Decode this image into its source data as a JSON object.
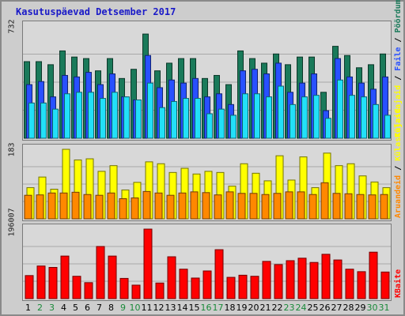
{
  "title": "Kasutuspäevad Detsember 2017",
  "chart_data": [
    {
      "type": "bar",
      "panel": "top",
      "max_label": "732",
      "ylim": [
        0,
        732
      ],
      "legend": [
        "Külastajaid",
        "Faile",
        "Pöördumisi"
      ],
      "categories": [
        "1",
        "2",
        "3",
        "4",
        "5",
        "6",
        "7",
        "8",
        "9",
        "10",
        "11",
        "12",
        "13",
        "14",
        "15",
        "16",
        "17",
        "18",
        "19",
        "20",
        "21",
        "22",
        "23",
        "24",
        "25",
        "26",
        "27",
        "28",
        "29",
        "30",
        "31"
      ],
      "series": [
        {
          "name": "Pöördumisi",
          "color": "#1a7a5a",
          "values": [
            500,
            500,
            480,
            570,
            530,
            520,
            440,
            520,
            390,
            450,
            680,
            440,
            490,
            520,
            520,
            390,
            410,
            350,
            570,
            520,
            490,
            550,
            480,
            530,
            530,
            300,
            600,
            540,
            460,
            480,
            550
          ]
        },
        {
          "name": "Faile",
          "color": "#2850ff",
          "values": [
            350,
            370,
            270,
            410,
            400,
            430,
            350,
            420,
            270,
            250,
            540,
            330,
            380,
            360,
            390,
            270,
            290,
            220,
            440,
            450,
            420,
            490,
            300,
            360,
            420,
            180,
            520,
            400,
            360,
            320,
            400
          ]
        },
        {
          "name": "Külastajaid",
          "color": "#22e0f8",
          "values": [
            230,
            230,
            190,
            290,
            300,
            300,
            260,
            300,
            270,
            250,
            360,
            200,
            240,
            260,
            260,
            160,
            190,
            150,
            290,
            290,
            270,
            340,
            220,
            270,
            280,
            130,
            380,
            280,
            270,
            220,
            150
          ]
        }
      ]
    },
    {
      "type": "bar",
      "panel": "middle",
      "max_label": "183",
      "ylim": [
        0,
        183
      ],
      "legend": [
        "Aruandeid",
        "Külastajaid"
      ],
      "categories": [
        "1",
        "2",
        "3",
        "4",
        "5",
        "6",
        "7",
        "8",
        "9",
        "10",
        "11",
        "12",
        "13",
        "14",
        "15",
        "16",
        "17",
        "18",
        "19",
        "20",
        "21",
        "22",
        "23",
        "24",
        "25",
        "26",
        "27",
        "28",
        "29",
        "30",
        "31"
      ],
      "series": [
        {
          "name": "Külastajaid",
          "color": "#ffff00",
          "values": [
            82,
            110,
            78,
            183,
            155,
            158,
            125,
            140,
            76,
            96,
            150,
            145,
            122,
            133,
            118,
            125,
            122,
            86,
            145,
            120,
            100,
            166,
            102,
            163,
            82,
            173,
            140,
            145,
            113,
            97,
            82
          ]
        },
        {
          "name": "Aruandeid",
          "color": "#ff8800",
          "values": [
            62,
            63,
            68,
            68,
            70,
            64,
            62,
            68,
            53,
            55,
            72,
            68,
            62,
            68,
            71,
            69,
            63,
            71,
            67,
            67,
            64,
            67,
            71,
            71,
            64,
            95,
            67,
            66,
            64,
            63,
            64
          ]
        }
      ]
    },
    {
      "type": "bar",
      "panel": "bottom",
      "max_label": "196007",
      "ylim": [
        0,
        196007
      ],
      "legend": [
        "KBaite"
      ],
      "categories": [
        "1",
        "2",
        "3",
        "4",
        "5",
        "6",
        "7",
        "8",
        "9",
        "10",
        "11",
        "12",
        "13",
        "14",
        "15",
        "16",
        "17",
        "18",
        "19",
        "20",
        "21",
        "22",
        "23",
        "24",
        "25",
        "26",
        "27",
        "28",
        "29",
        "30",
        "31"
      ],
      "series": [
        {
          "name": "KBaite",
          "color": "#ff0000",
          "values": [
            65000,
            92000,
            88000,
            120000,
            63000,
            45000,
            147000,
            120000,
            57000,
            38000,
            196000,
            44000,
            118000,
            83000,
            58000,
            78000,
            138000,
            60000,
            66000,
            63000,
            105000,
            96000,
            107000,
            114000,
            102000,
            125000,
            109000,
            83000,
            76000,
            131000,
            75000
          ]
        }
      ]
    }
  ],
  "xaxis": {
    "labels": [
      "1",
      "2",
      "3",
      "4",
      "5",
      "6",
      "7",
      "8",
      "9",
      "10",
      "11",
      "12",
      "13",
      "14",
      "15",
      "16",
      "17",
      "18",
      "19",
      "20",
      "21",
      "22",
      "23",
      "24",
      "25",
      "26",
      "27",
      "28",
      "29",
      "30",
      "31"
    ],
    "weekend_days": [
      "2",
      "3",
      "9",
      "10",
      "16",
      "17",
      "23",
      "24",
      "30",
      "31"
    ],
    "weekday_color": "#000000",
    "weekend_color": "#1a8a3a"
  },
  "legend_colors": {
    "Aruandeid": "#ff8800",
    "Külastajaid": "#ffff00",
    "Faile": "#2850ff",
    "Pöördumisi": "#1a7a5a",
    "KBaite": "#ff0000",
    "separator": "#000000"
  }
}
